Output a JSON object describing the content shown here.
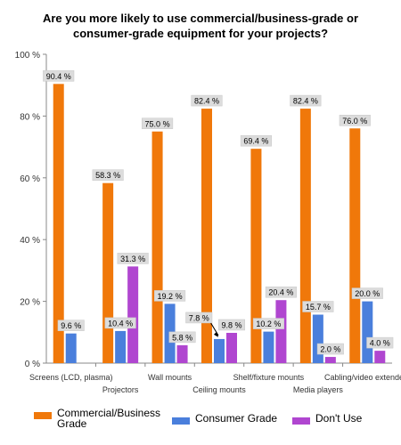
{
  "chart_data": {
    "type": "bar",
    "title_lines": [
      "Are you more likely to use commercial/business-grade or",
      "consumer-grade equipment for your projects?"
    ],
    "categories": [
      "Screens (LCD, plasma)",
      "Projectors",
      "Wall mounts",
      "Ceiling mounts",
      "Shelf/fixture mounts",
      "Media players",
      "Cabling/video extenders"
    ],
    "series": [
      {
        "name": "Commercial/Business Grade",
        "color": "#f0780a",
        "values": [
          90.4,
          58.3,
          75.0,
          82.4,
          69.4,
          82.4,
          76.0
        ],
        "labels": [
          "90.4 %",
          "58.3 %",
          "75.0 %",
          "82.4 %",
          "69.4 %",
          "82.4 %",
          "76.0 %"
        ]
      },
      {
        "name": "Consumer Grade",
        "color": "#4a7fdc",
        "values": [
          9.6,
          10.4,
          19.2,
          7.8,
          10.2,
          15.7,
          20.0
        ],
        "labels": [
          "9.6 %",
          "10.4 %",
          "19.2 %",
          "7.8 %",
          "10.2 %",
          "15.7 %",
          "20.0 %"
        ]
      },
      {
        "name": "Don't Use",
        "color": "#b046d0",
        "values": [
          0,
          31.3,
          5.8,
          9.8,
          20.4,
          2.0,
          4.0
        ],
        "labels": [
          "",
          "31.3 %",
          "5.8 %",
          "9.8 %",
          "20.4 %",
          "2.0 %",
          "4.0 %"
        ]
      }
    ],
    "ylim": [
      0,
      100
    ],
    "yticks": [
      0,
      20,
      40,
      60,
      80,
      100
    ],
    "ytick_labels": [
      "0 %",
      "20 %",
      "40 %",
      "60 %",
      "80 %",
      "100 %"
    ],
    "grid": false,
    "legend_position": "bottom",
    "legend_labels": [
      [
        "Commercial/Business",
        "Grade"
      ],
      [
        "Consumer Grade"
      ],
      [
        "Don't Use"
      ]
    ]
  }
}
